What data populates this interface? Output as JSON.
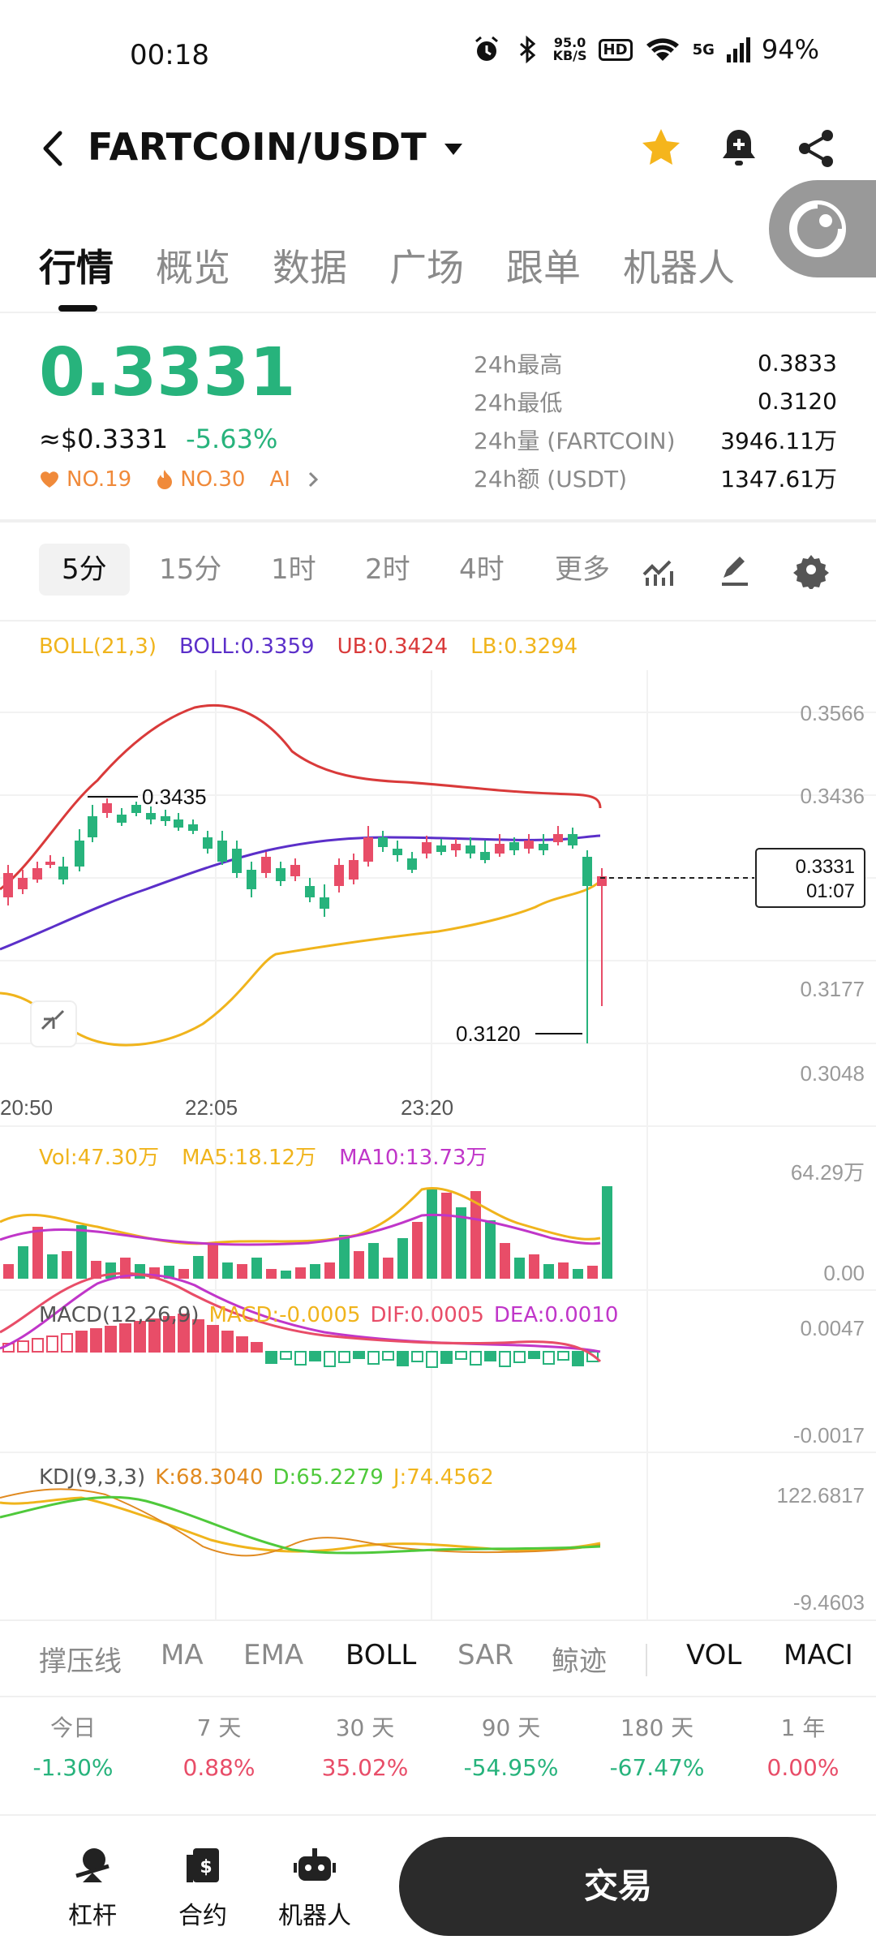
{
  "status": {
    "time": "00:18",
    "net_speed_value": "95.0",
    "net_speed_unit": "KB/S",
    "hd": "HD",
    "signal": "5G",
    "battery": "94%"
  },
  "header": {
    "pair": "FARTCOIN/USDT"
  },
  "tabs": [
    "行情",
    "概览",
    "数据",
    "广场",
    "跟单",
    "机器人"
  ],
  "ticker": {
    "price": "0.3331",
    "usd_price": "≈$0.3331",
    "change": "-5.63%",
    "tag1": "NO.19",
    "tag2": "NO.30",
    "tag3": "AI",
    "stats": [
      {
        "label": "24h最高",
        "value": "0.3833"
      },
      {
        "label": "24h最低",
        "value": "0.3120"
      },
      {
        "label": "24h量 (FARTCOIN)",
        "value": "3946.11万"
      },
      {
        "label": "24h额 (USDT)",
        "value": "1347.61万"
      }
    ]
  },
  "timeframes": [
    "5分",
    "15分",
    "1时",
    "2时",
    "4时",
    "更多"
  ],
  "chart": {
    "boll_legend": {
      "params": "BOLL(21,3)",
      "mid": "BOLL:0.3359",
      "ub": "UB:0.3424",
      "lb": "LB:0.3294"
    },
    "price_axis": [
      "0.3566",
      "0.3436",
      "0.3177",
      "0.3048"
    ],
    "time_axis": [
      "20:50",
      "22:05",
      "23:20"
    ],
    "high_marker": "0.3435",
    "low_marker": "0.3120",
    "last_price": "0.3331",
    "countdown": "01:07",
    "vol_legend": {
      "vol": "Vol:47.30万",
      "ma5": "MA5:18.12万",
      "ma10": "MA10:13.73万"
    },
    "vol_axis": [
      "64.29万",
      "0.00"
    ],
    "macd_legend": {
      "params": "MACD(12,26,9)",
      "macd": "MACD:-0.0005",
      "dif": "DIF:0.0005",
      "dea": "DEA:0.0010"
    },
    "macd_axis": [
      "0.0047",
      "-0.0017"
    ],
    "kdj_legend": {
      "params": "KDJ(9,3,3)",
      "k": "K:68.3040",
      "d": "D:65.2279",
      "j": "J:74.4562"
    },
    "kdj_axis": [
      "122.6817",
      "-9.4603"
    ]
  },
  "indicators": [
    "撑压线",
    "MA",
    "EMA",
    "BOLL",
    "SAR",
    "鲸迹",
    "VOL",
    "MACI"
  ],
  "performance": [
    {
      "label": "今日",
      "value": "-1.30%"
    },
    {
      "label": "7 天",
      "value": "0.88%"
    },
    {
      "label": "30 天",
      "value": "35.02%"
    },
    {
      "label": "90 天",
      "value": "-54.95%"
    },
    {
      "label": "180 天",
      "value": "-67.47%"
    },
    {
      "label": "1 年",
      "value": "0.00%"
    }
  ],
  "bottom_nav": {
    "leverage": "杠杆",
    "futures": "合约",
    "bots": "机器人",
    "trade": "交易"
  },
  "colors": {
    "up": "#e84d68",
    "down": "#27b37c",
    "boll_mid": "#5b2fc9",
    "boll_ub": "#d93a3a",
    "boll_lb": "#f0b41c"
  }
}
